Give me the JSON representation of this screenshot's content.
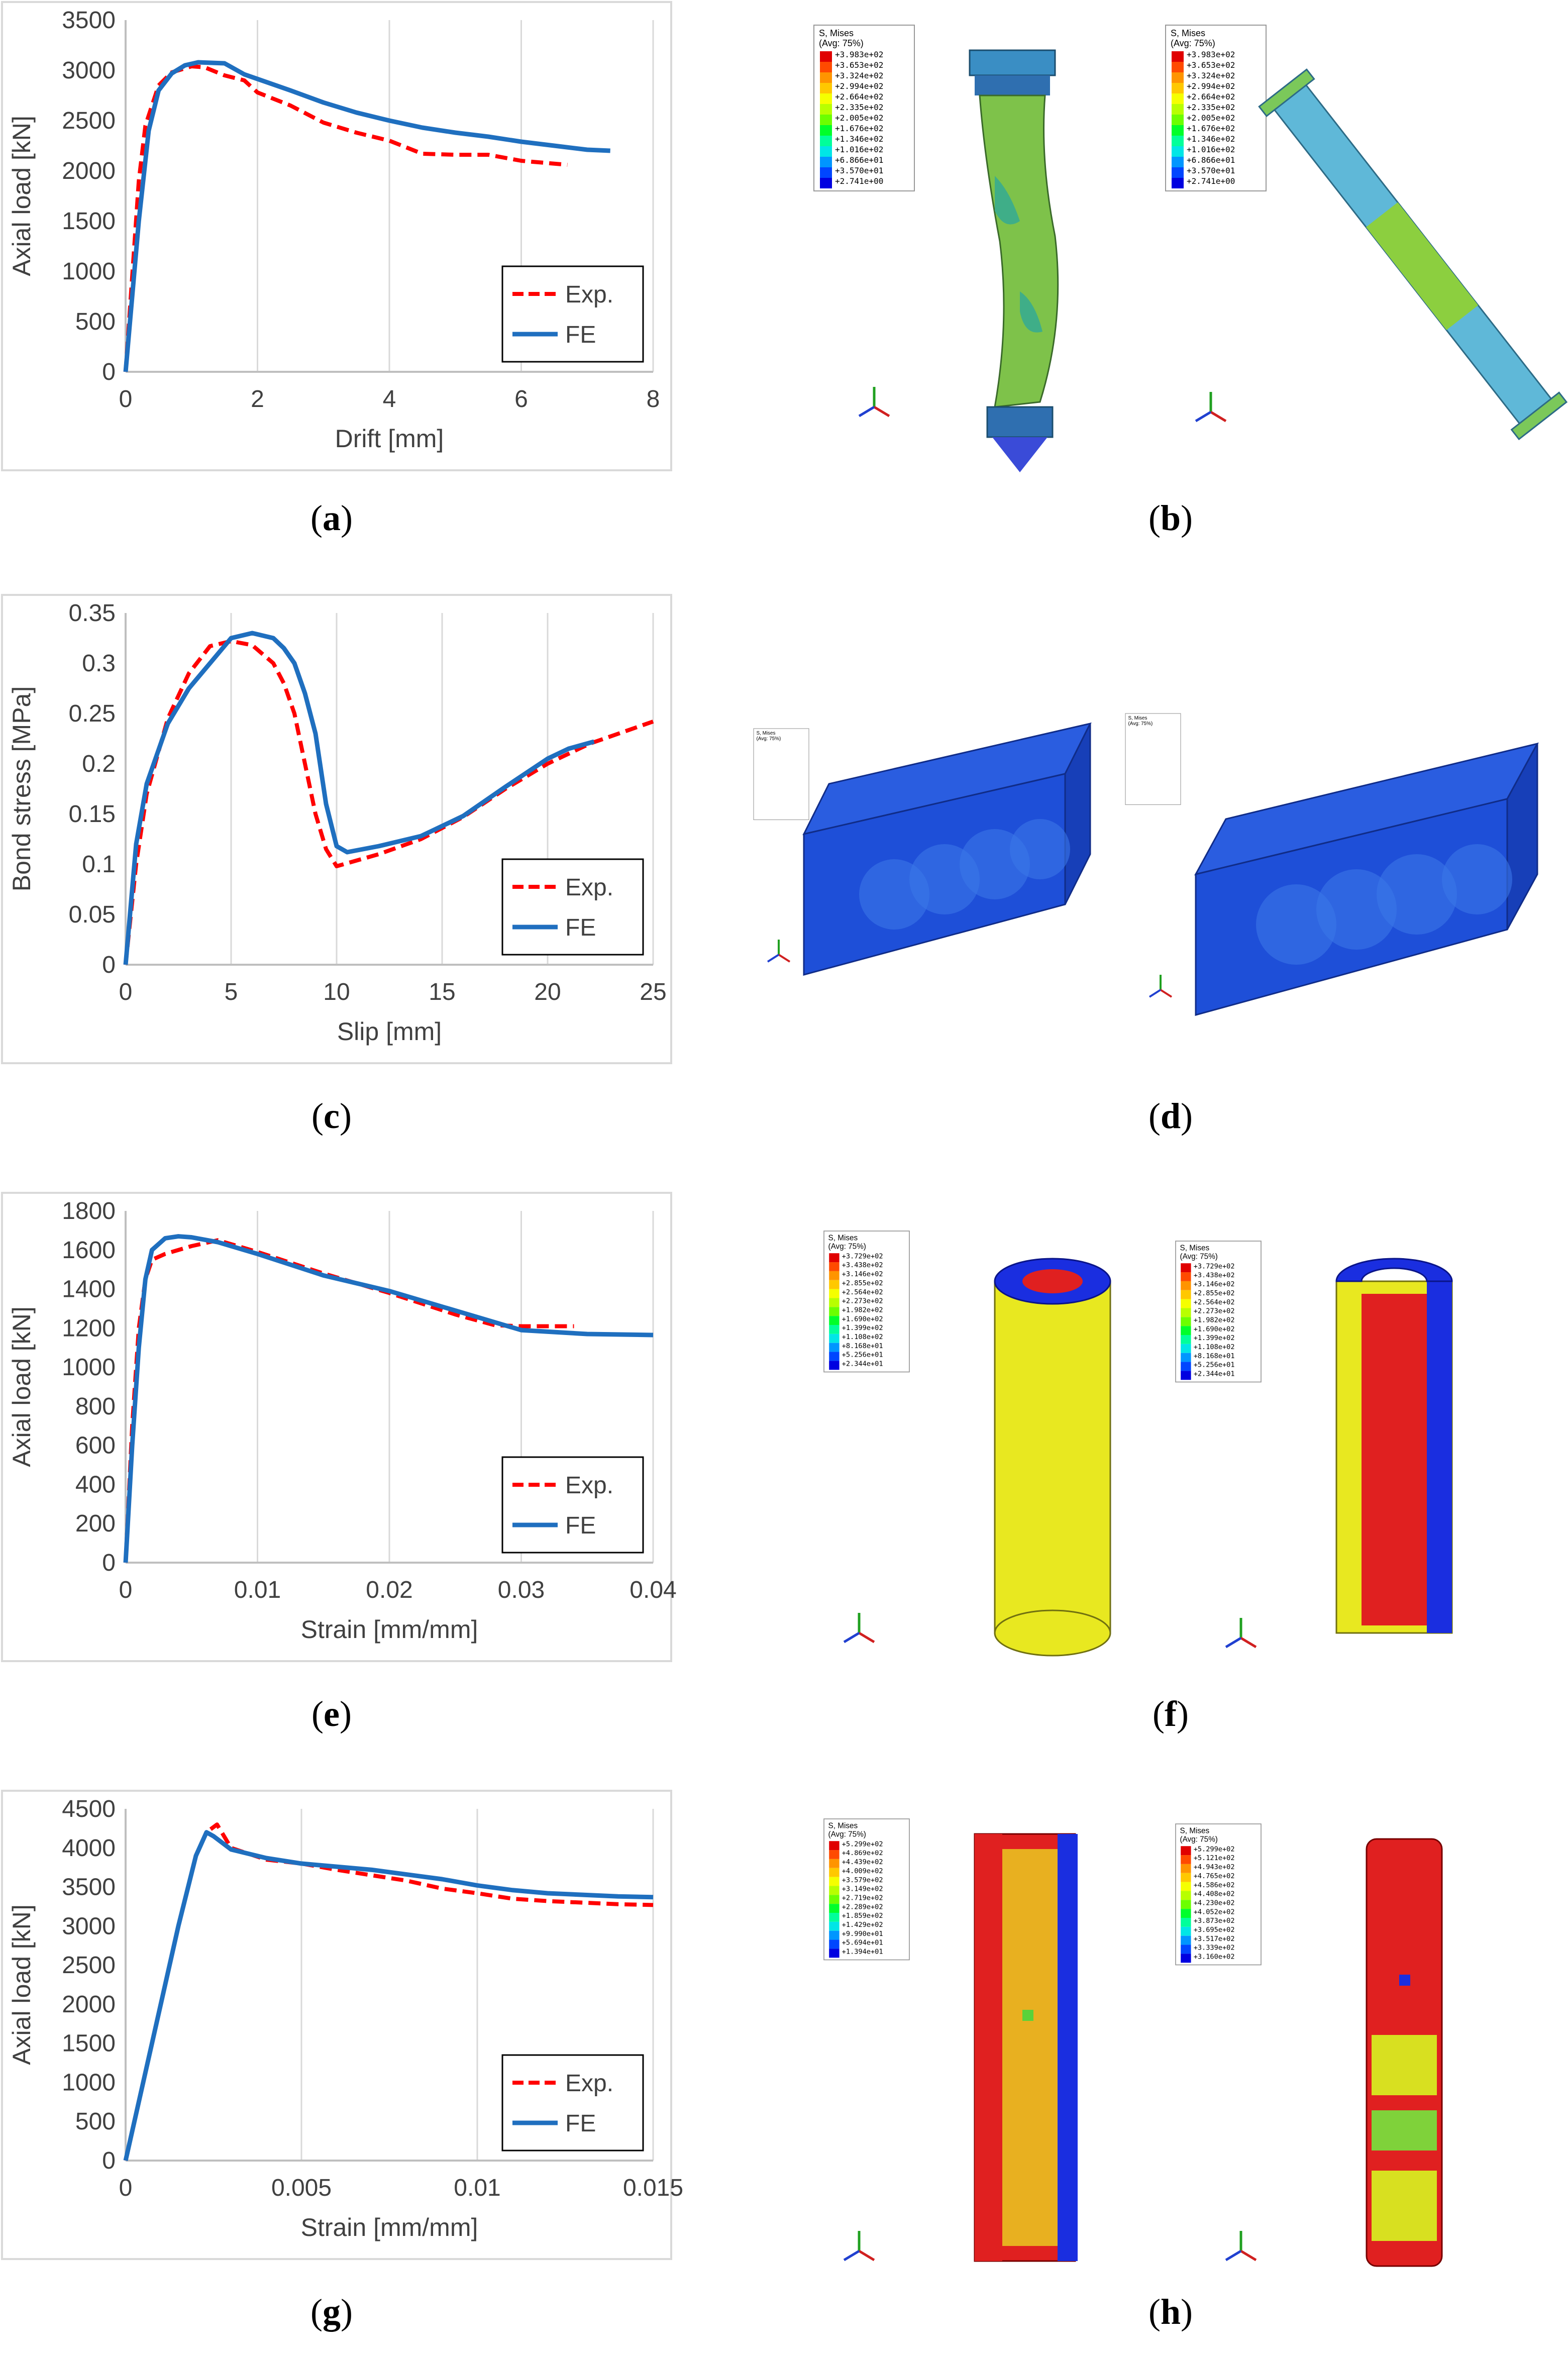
{
  "captions": {
    "a": "a",
    "b": "b",
    "c": "c",
    "d": "d",
    "e": "e",
    "f": "f",
    "g": "g",
    "h": "h"
  },
  "legend": {
    "exp": "Exp.",
    "fe": "FE"
  },
  "colors": {
    "exp": "#ff0000",
    "fe": "#1f6fbf",
    "grid": "#d9d9d9"
  },
  "chart_data": [
    {
      "id": "a",
      "type": "line",
      "xlabel": "Drift [mm]",
      "ylabel": "Axial load [kN]",
      "xlim": [
        0,
        8
      ],
      "ylim": [
        0,
        3500
      ],
      "xticks": [
        0,
        2,
        4,
        6,
        8
      ],
      "yticks": [
        0,
        500,
        1000,
        1500,
        2000,
        2500,
        3000,
        3500
      ],
      "xtick_labels": [
        "0",
        "2",
        "4",
        "6",
        "8"
      ],
      "ytick_labels": [
        "0",
        "500",
        "1000",
        "1500",
        "2000",
        "2500",
        "3000",
        "3500"
      ],
      "grid": "vertical",
      "legend_position": "bottom-right",
      "series": [
        {
          "name": "Exp.",
          "style": "dashed",
          "x": [
            0,
            0.2,
            0.3,
            0.5,
            0.7,
            1.0,
            1.2,
            1.5,
            1.8,
            2.0,
            2.5,
            3.0,
            3.5,
            4.0,
            4.5,
            5.0,
            5.5,
            6.0,
            6.7
          ],
          "y": [
            0,
            1900,
            2450,
            2850,
            2980,
            3040,
            3030,
            2950,
            2900,
            2780,
            2650,
            2480,
            2380,
            2300,
            2170,
            2160,
            2160,
            2100,
            2060
          ]
        },
        {
          "name": "FE",
          "style": "solid",
          "x": [
            0,
            0.2,
            0.35,
            0.5,
            0.7,
            0.9,
            1.1,
            1.5,
            1.8,
            2.5,
            3.0,
            3.5,
            4.0,
            4.5,
            5.0,
            5.5,
            6.0,
            6.5,
            7.0,
            7.35
          ],
          "y": [
            0,
            1500,
            2400,
            2800,
            2970,
            3050,
            3080,
            3070,
            2960,
            2800,
            2680,
            2580,
            2500,
            2430,
            2380,
            2340,
            2290,
            2250,
            2210,
            2200
          ]
        }
      ]
    },
    {
      "id": "c",
      "type": "line",
      "xlabel": "Slip [mm]",
      "ylabel": "Bond stress [MPa]",
      "xlim": [
        0,
        25
      ],
      "ylim": [
        0,
        0.35
      ],
      "xticks": [
        0,
        5,
        10,
        15,
        20,
        25
      ],
      "yticks": [
        0,
        0.05,
        0.1,
        0.15,
        0.2,
        0.25,
        0.3,
        0.35
      ],
      "xtick_labels": [
        "0",
        "5",
        "10",
        "15",
        "20",
        "25"
      ],
      "ytick_labels": [
        "0",
        "0.05",
        "0.1",
        "0.15",
        "0.2",
        "0.25",
        "0.3",
        "0.35"
      ],
      "grid": "vertical",
      "legend_position": "bottom-right",
      "series": [
        {
          "name": "Exp.",
          "style": "dashed",
          "x": [
            0,
            0.5,
            1,
            2,
            3,
            4,
            5,
            6,
            7,
            7.5,
            8,
            8.5,
            9,
            9.5,
            10,
            12,
            14,
            16,
            18,
            20,
            22,
            25
          ],
          "y": [
            0,
            0.1,
            0.17,
            0.245,
            0.29,
            0.317,
            0.322,
            0.318,
            0.3,
            0.28,
            0.25,
            0.2,
            0.15,
            0.115,
            0.098,
            0.11,
            0.125,
            0.147,
            0.175,
            0.2,
            0.22,
            0.242
          ]
        },
        {
          "name": "FE",
          "style": "solid",
          "x": [
            0,
            0.5,
            1,
            2,
            3,
            4,
            5,
            6,
            7,
            7.5,
            8,
            8.5,
            9,
            9.5,
            10,
            10.5,
            12,
            14,
            16,
            18,
            20,
            21,
            22.2
          ],
          "y": [
            0,
            0.12,
            0.18,
            0.24,
            0.275,
            0.3,
            0.325,
            0.33,
            0.325,
            0.315,
            0.3,
            0.27,
            0.23,
            0.16,
            0.118,
            0.112,
            0.118,
            0.128,
            0.148,
            0.177,
            0.205,
            0.215,
            0.222
          ]
        }
      ]
    },
    {
      "id": "e",
      "type": "line",
      "xlabel": "Strain [mm/mm]",
      "ylabel": "Axial load [kN]",
      "xlim": [
        0,
        0.04
      ],
      "ylim": [
        0,
        1800
      ],
      "xticks": [
        0,
        0.01,
        0.02,
        0.03,
        0.04
      ],
      "yticks": [
        0,
        200,
        400,
        600,
        800,
        1000,
        1200,
        1400,
        1600,
        1800
      ],
      "xtick_labels": [
        "0",
        "0.01",
        "0.02",
        "0.03",
        "0.04"
      ],
      "ytick_labels": [
        "0",
        "200",
        "400",
        "600",
        "800",
        "1000",
        "1200",
        "1400",
        "1600",
        "1800"
      ],
      "grid": "vertical",
      "legend_position": "bottom-right",
      "series": [
        {
          "name": "Exp.",
          "style": "dashed",
          "x": [
            0,
            0.0005,
            0.001,
            0.0015,
            0.002,
            0.003,
            0.005,
            0.007,
            0.01,
            0.015,
            0.02,
            0.025,
            0.028,
            0.03,
            0.034
          ],
          "y": [
            0,
            700,
            1200,
            1450,
            1550,
            1580,
            1620,
            1650,
            1590,
            1480,
            1380,
            1270,
            1215,
            1210,
            1210
          ]
        },
        {
          "name": "FE",
          "style": "solid",
          "x": [
            0,
            0.0005,
            0.001,
            0.0015,
            0.002,
            0.003,
            0.004,
            0.005,
            0.007,
            0.01,
            0.015,
            0.02,
            0.025,
            0.028,
            0.03,
            0.035,
            0.04
          ],
          "y": [
            0,
            600,
            1100,
            1450,
            1600,
            1660,
            1670,
            1665,
            1640,
            1580,
            1470,
            1390,
            1290,
            1230,
            1190,
            1170,
            1165
          ]
        }
      ]
    },
    {
      "id": "g",
      "type": "line",
      "xlabel": "Strain [mm/mm]",
      "ylabel": "Axial load [kN]",
      "xlim": [
        0,
        0.015
      ],
      "ylim": [
        0,
        4500
      ],
      "xticks": [
        0,
        0.005,
        0.01,
        0.015
      ],
      "yticks": [
        0,
        500,
        1000,
        1500,
        2000,
        2500,
        3000,
        3500,
        4000,
        4500
      ],
      "xtick_labels": [
        "0",
        "0.005",
        "0.01",
        "0.015"
      ],
      "ytick_labels": [
        "0",
        "500",
        "1000",
        "1500",
        "2000",
        "2500",
        "3000",
        "3500",
        "4000",
        "4500"
      ],
      "grid": "vertical",
      "legend_position": "bottom-right",
      "series": [
        {
          "name": "Exp.",
          "style": "dashed",
          "x": [
            0,
            0.0005,
            0.001,
            0.0015,
            0.002,
            0.0023,
            0.0026,
            0.0028,
            0.003,
            0.004,
            0.005,
            0.006,
            0.007,
            0.008,
            0.009,
            0.01,
            0.011,
            0.012,
            0.013,
            0.014,
            0.015
          ],
          "y": [
            0,
            1000,
            2000,
            3000,
            3900,
            4200,
            4300,
            4150,
            4000,
            3850,
            3800,
            3720,
            3650,
            3580,
            3480,
            3420,
            3350,
            3320,
            3300,
            3280,
            3270
          ]
        },
        {
          "name": "FE",
          "style": "solid",
          "x": [
            0,
            0.0005,
            0.001,
            0.0015,
            0.002,
            0.0023,
            0.0025,
            0.003,
            0.004,
            0.005,
            0.006,
            0.007,
            0.008,
            0.009,
            0.01,
            0.011,
            0.012,
            0.013,
            0.014,
            0.015
          ],
          "y": [
            0,
            1000,
            2000,
            3000,
            3900,
            4200,
            4150,
            3980,
            3870,
            3800,
            3760,
            3720,
            3660,
            3600,
            3520,
            3460,
            3420,
            3400,
            3380,
            3370
          ]
        }
      ]
    }
  ],
  "fe_panels": {
    "b": {
      "legend_title_1": "S, Mises",
      "legend_title_2": "(Avg: 75%)",
      "left_values": [
        "+3.983e+02",
        "+3.653e+02",
        "+3.324e+02",
        "+2.994e+02",
        "+2.664e+02",
        "+2.335e+02",
        "+2.005e+02",
        "+1.676e+02",
        "+1.346e+02",
        "+1.016e+02",
        "+6.866e+01",
        "+3.570e+01",
        "+2.741e+00"
      ],
      "right_values": [
        "+3.983e+02",
        "+3.653e+02",
        "+3.324e+02",
        "+2.994e+02",
        "+2.664e+02",
        "+2.335e+02",
        "+2.005e+02",
        "+1.676e+02",
        "+1.346e+02",
        "+1.016e+02",
        "+6.866e+01",
        "+3.570e+01",
        "+2.741e+00"
      ]
    },
    "f": {
      "legend_title_1": "S, Mises",
      "legend_title_2": "(Avg: 75%)",
      "left_values": [
        "+3.729e+02",
        "+3.438e+02",
        "+3.146e+02",
        "+2.855e+02",
        "+2.564e+02",
        "+2.273e+02",
        "+1.982e+02",
        "+1.690e+02",
        "+1.399e+02",
        "+1.108e+02",
        "+8.168e+01",
        "+5.256e+01",
        "+2.344e+01"
      ],
      "right_values": [
        "+3.729e+02",
        "+3.438e+02",
        "+3.146e+02",
        "+2.855e+02",
        "+2.564e+02",
        "+2.273e+02",
        "+1.982e+02",
        "+1.690e+02",
        "+1.399e+02",
        "+1.108e+02",
        "+8.168e+01",
        "+5.256e+01",
        "+2.344e+01"
      ]
    },
    "h": {
      "legend_title_1": "S, Mises",
      "legend_title_2": "(Avg: 75%)",
      "left_values": [
        "+5.299e+02",
        "+4.869e+02",
        "+4.439e+02",
        "+4.009e+02",
        "+3.579e+02",
        "+3.149e+02",
        "+2.719e+02",
        "+2.289e+02",
        "+1.859e+02",
        "+1.429e+02",
        "+9.990e+01",
        "+5.694e+01",
        "+1.394e+01"
      ],
      "right_values": [
        "+5.299e+02",
        "+5.121e+02",
        "+4.943e+02",
        "+4.765e+02",
        "+4.586e+02",
        "+4.408e+02",
        "+4.230e+02",
        "+4.052e+02",
        "+3.873e+02",
        "+3.695e+02",
        "+3.517e+02",
        "+3.339e+02",
        "+3.160e+02"
      ]
    }
  },
  "contour_colors": [
    "#e00000",
    "#ff4a00",
    "#ff9400",
    "#ffc800",
    "#f5ff00",
    "#b8ff00",
    "#6cff00",
    "#00ff2a",
    "#00ff9a",
    "#00e6e6",
    "#0096ff",
    "#0046ff",
    "#0000e0"
  ]
}
